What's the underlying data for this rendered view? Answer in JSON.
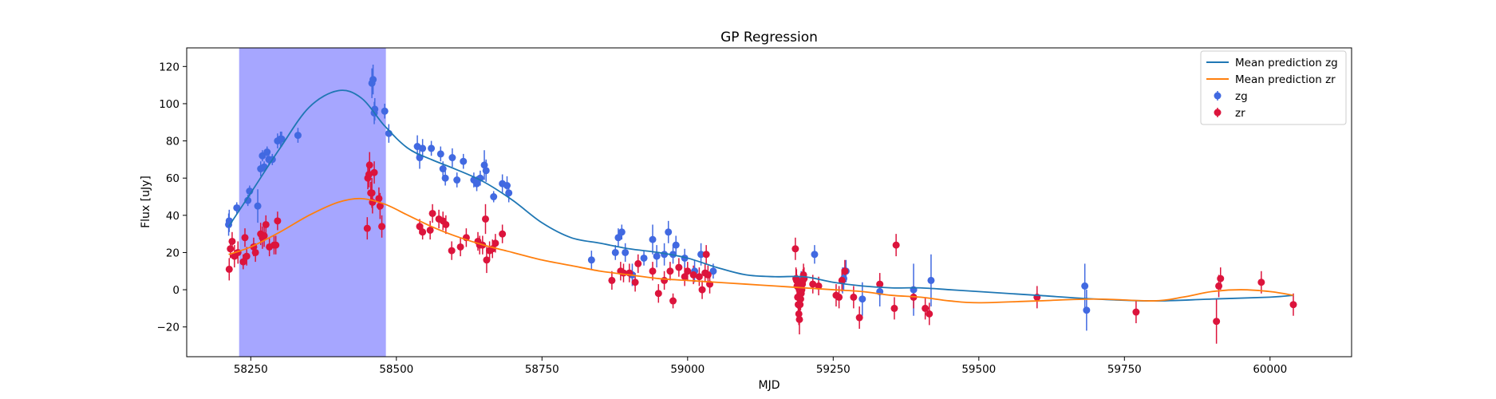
{
  "chart_data": {
    "type": "scatter",
    "title": "GP Regression",
    "xlabel": "MJD",
    "ylabel": "Flux [uJy]",
    "xlim": [
      58140,
      60140
    ],
    "ylim": [
      -36,
      130
    ],
    "xticks": [
      58250,
      58500,
      58750,
      59000,
      59250,
      59500,
      59750,
      60000
    ],
    "yticks": [
      -20,
      0,
      20,
      40,
      60,
      80,
      100,
      120
    ],
    "grid": false,
    "legend_position": "top-right",
    "shaded_region": {
      "x": [
        58230,
        58482
      ],
      "color": "#0000ff",
      "alpha": 0.35
    },
    "colors": {
      "zg_line": "#1f77b4",
      "zr_line": "#ff7f0e",
      "zg_points": "#4169e1",
      "zr_points": "#dc143c"
    },
    "lines": [
      {
        "name": "Mean prediction zg",
        "x": [
          58212,
          58250,
          58300,
          58350,
          58400,
          58440,
          58480,
          58520,
          58560,
          58600,
          58650,
          58700,
          58750,
          58800,
          58850,
          58900,
          58950,
          59000,
          59050,
          59100,
          59150,
          59200,
          59250,
          59300,
          59350,
          59400,
          59450,
          59500,
          59600,
          59700,
          59800,
          59900,
          60000,
          60040
        ],
        "y": [
          34,
          52,
          76,
          98,
          107,
          103,
          88,
          76,
          70,
          65,
          58,
          48,
          36,
          28,
          25,
          22,
          20,
          17,
          12,
          8,
          7,
          7,
          4,
          2,
          1,
          1,
          0,
          -1,
          -3,
          -5,
          -6,
          -5,
          -4,
          -3
        ]
      },
      {
        "name": "Mean prediction zr",
        "x": [
          58212,
          58250,
          58300,
          58350,
          58400,
          58440,
          58480,
          58520,
          58560,
          58600,
          58650,
          58700,
          58750,
          58800,
          58850,
          58900,
          58950,
          59000,
          59050,
          59100,
          59150,
          59200,
          59250,
          59300,
          59350,
          59400,
          59450,
          59500,
          59600,
          59700,
          59800,
          59850,
          59900,
          59950,
          60000,
          60040
        ],
        "y": [
          19,
          23,
          31,
          40,
          47,
          49,
          46,
          40,
          34,
          29,
          24,
          20,
          16,
          13,
          10,
          8,
          6,
          5,
          4,
          3,
          2,
          1,
          0,
          -1,
          -3,
          -4,
          -6,
          -7,
          -6,
          -5,
          -6,
          -4,
          -1,
          0,
          -1,
          -3
        ]
      }
    ],
    "series": [
      {
        "name": "zg",
        "x": [
          58212,
          58213,
          58226,
          58245,
          58248,
          58262,
          58267,
          58270,
          58273,
          58278,
          58281,
          58287,
          58296,
          58301,
          58303,
          58331,
          58458,
          58460,
          58462,
          58463,
          58480,
          58487,
          58536,
          58540,
          58545,
          58560,
          58576,
          58580,
          58584,
          58596,
          58604,
          58615,
          58633,
          58638,
          58644,
          58651,
          58654,
          58667,
          58682,
          58690,
          58693,
          58835,
          58876,
          58881,
          58887,
          58893,
          58905,
          58925,
          58940,
          58947,
          58960,
          58967,
          58975,
          58980,
          58995,
          59012,
          59023,
          59044,
          59195,
          59218,
          59266,
          59268,
          59272,
          59300,
          59330,
          59388,
          59418,
          59682,
          59685
        ],
        "y": [
          35,
          37,
          44,
          48,
          53,
          45,
          65,
          72,
          66,
          74,
          70,
          70,
          80,
          81,
          81,
          83,
          111,
          113,
          95,
          97,
          96,
          84,
          77,
          71,
          76,
          76,
          73,
          65,
          60,
          71,
          59,
          69,
          59,
          57,
          60,
          67,
          64,
          50,
          57,
          56,
          52,
          16,
          20,
          28,
          31,
          20,
          8,
          17,
          27,
          18,
          19,
          31,
          19,
          24,
          17,
          10,
          19,
          10,
          5,
          19,
          5,
          6,
          10,
          -5,
          -1,
          0,
          5,
          2,
          -11
        ],
        "err": [
          6,
          6,
          3,
          3,
          3,
          9,
          4,
          3,
          3,
          3,
          3,
          3,
          4,
          4,
          4,
          4,
          8,
          8,
          6,
          6,
          4,
          5,
          6,
          6,
          5,
          4,
          4,
          4,
          4,
          5,
          4,
          4,
          4,
          4,
          4,
          8,
          6,
          3,
          5,
          5,
          5,
          5,
          4,
          5,
          4,
          5,
          6,
          4,
          8,
          6,
          6,
          6,
          5,
          5,
          5,
          6,
          6,
          4,
          5,
          5,
          7,
          6,
          6,
          9,
          8,
          14,
          14,
          12,
          11
        ]
      },
      {
        "name": "zr",
        "x": [
          58213,
          58215,
          58218,
          58222,
          58228,
          58237,
          58240,
          58243,
          58255,
          58258,
          58267,
          58270,
          58273,
          58276,
          58282,
          58290,
          58293,
          58296,
          58450,
          58451,
          58453,
          58454,
          58456,
          58458,
          58459,
          58462,
          58470,
          58472,
          58475,
          58540,
          58545,
          58558,
          58562,
          58573,
          58580,
          58585,
          58595,
          58610,
          58620,
          58640,
          58643,
          58648,
          58653,
          58655,
          58660,
          58665,
          58670,
          58682,
          58870,
          58885,
          58890,
          58900,
          58910,
          58915,
          58940,
          58950,
          58960,
          58970,
          58975,
          58985,
          58995,
          59000,
          59010,
          59020,
          59025,
          59030,
          59032,
          59035,
          59038,
          59185,
          59186,
          59187,
          59188,
          59189,
          59190,
          59191,
          59192,
          59193,
          59194,
          59195,
          59196,
          59197,
          59198,
          59199,
          59200,
          59215,
          59225,
          59255,
          59260,
          59265,
          59270,
          59285,
          59295,
          59330,
          59355,
          59358,
          59388,
          59408,
          59415,
          59600,
          59770,
          59908,
          59912,
          59915,
          59985,
          60040
        ],
        "y": [
          11,
          22,
          26,
          18,
          20,
          15,
          28,
          18,
          23,
          20,
          30,
          28,
          29,
          35,
          23,
          24,
          24,
          37,
          33,
          60,
          62,
          67,
          52,
          52,
          47,
          63,
          49,
          45,
          34,
          34,
          31,
          32,
          41,
          38,
          37,
          35,
          21,
          23,
          28,
          26,
          24,
          24,
          38,
          16,
          21,
          22,
          25,
          30,
          5,
          10,
          9,
          9,
          4,
          14,
          10,
          -2,
          5,
          10,
          -6,
          12,
          7,
          10,
          8,
          7,
          0,
          9,
          19,
          8,
          3,
          22,
          6,
          5,
          2,
          -4,
          -8,
          -13,
          -16,
          -8,
          -5,
          -2,
          0,
          3,
          5,
          8,
          6,
          3,
          2,
          -3,
          -4,
          5,
          10,
          -4,
          -15,
          3,
          -10,
          24,
          -4,
          -10,
          -13,
          -4,
          -12,
          -17,
          2,
          6,
          4,
          -8
        ],
        "err": [
          6,
          5,
          5,
          6,
          6,
          4,
          5,
          5,
          5,
          5,
          6,
          6,
          6,
          5,
          5,
          5,
          5,
          5,
          6,
          6,
          7,
          7,
          6,
          8,
          6,
          6,
          6,
          7,
          6,
          4,
          4,
          5,
          5,
          5,
          5,
          5,
          5,
          5,
          5,
          5,
          5,
          5,
          8,
          7,
          5,
          5,
          5,
          5,
          5,
          5,
          5,
          5,
          5,
          5,
          5,
          5,
          5,
          5,
          4,
          5,
          5,
          5,
          5,
          5,
          5,
          5,
          5,
          5,
          5,
          6,
          6,
          6,
          6,
          6,
          6,
          6,
          8,
          7,
          6,
          6,
          6,
          6,
          6,
          6,
          6,
          5,
          5,
          6,
          6,
          6,
          6,
          6,
          6,
          6,
          6,
          6,
          6,
          6,
          6,
          6,
          6,
          12,
          6,
          6,
          6,
          6
        ]
      }
    ]
  }
}
